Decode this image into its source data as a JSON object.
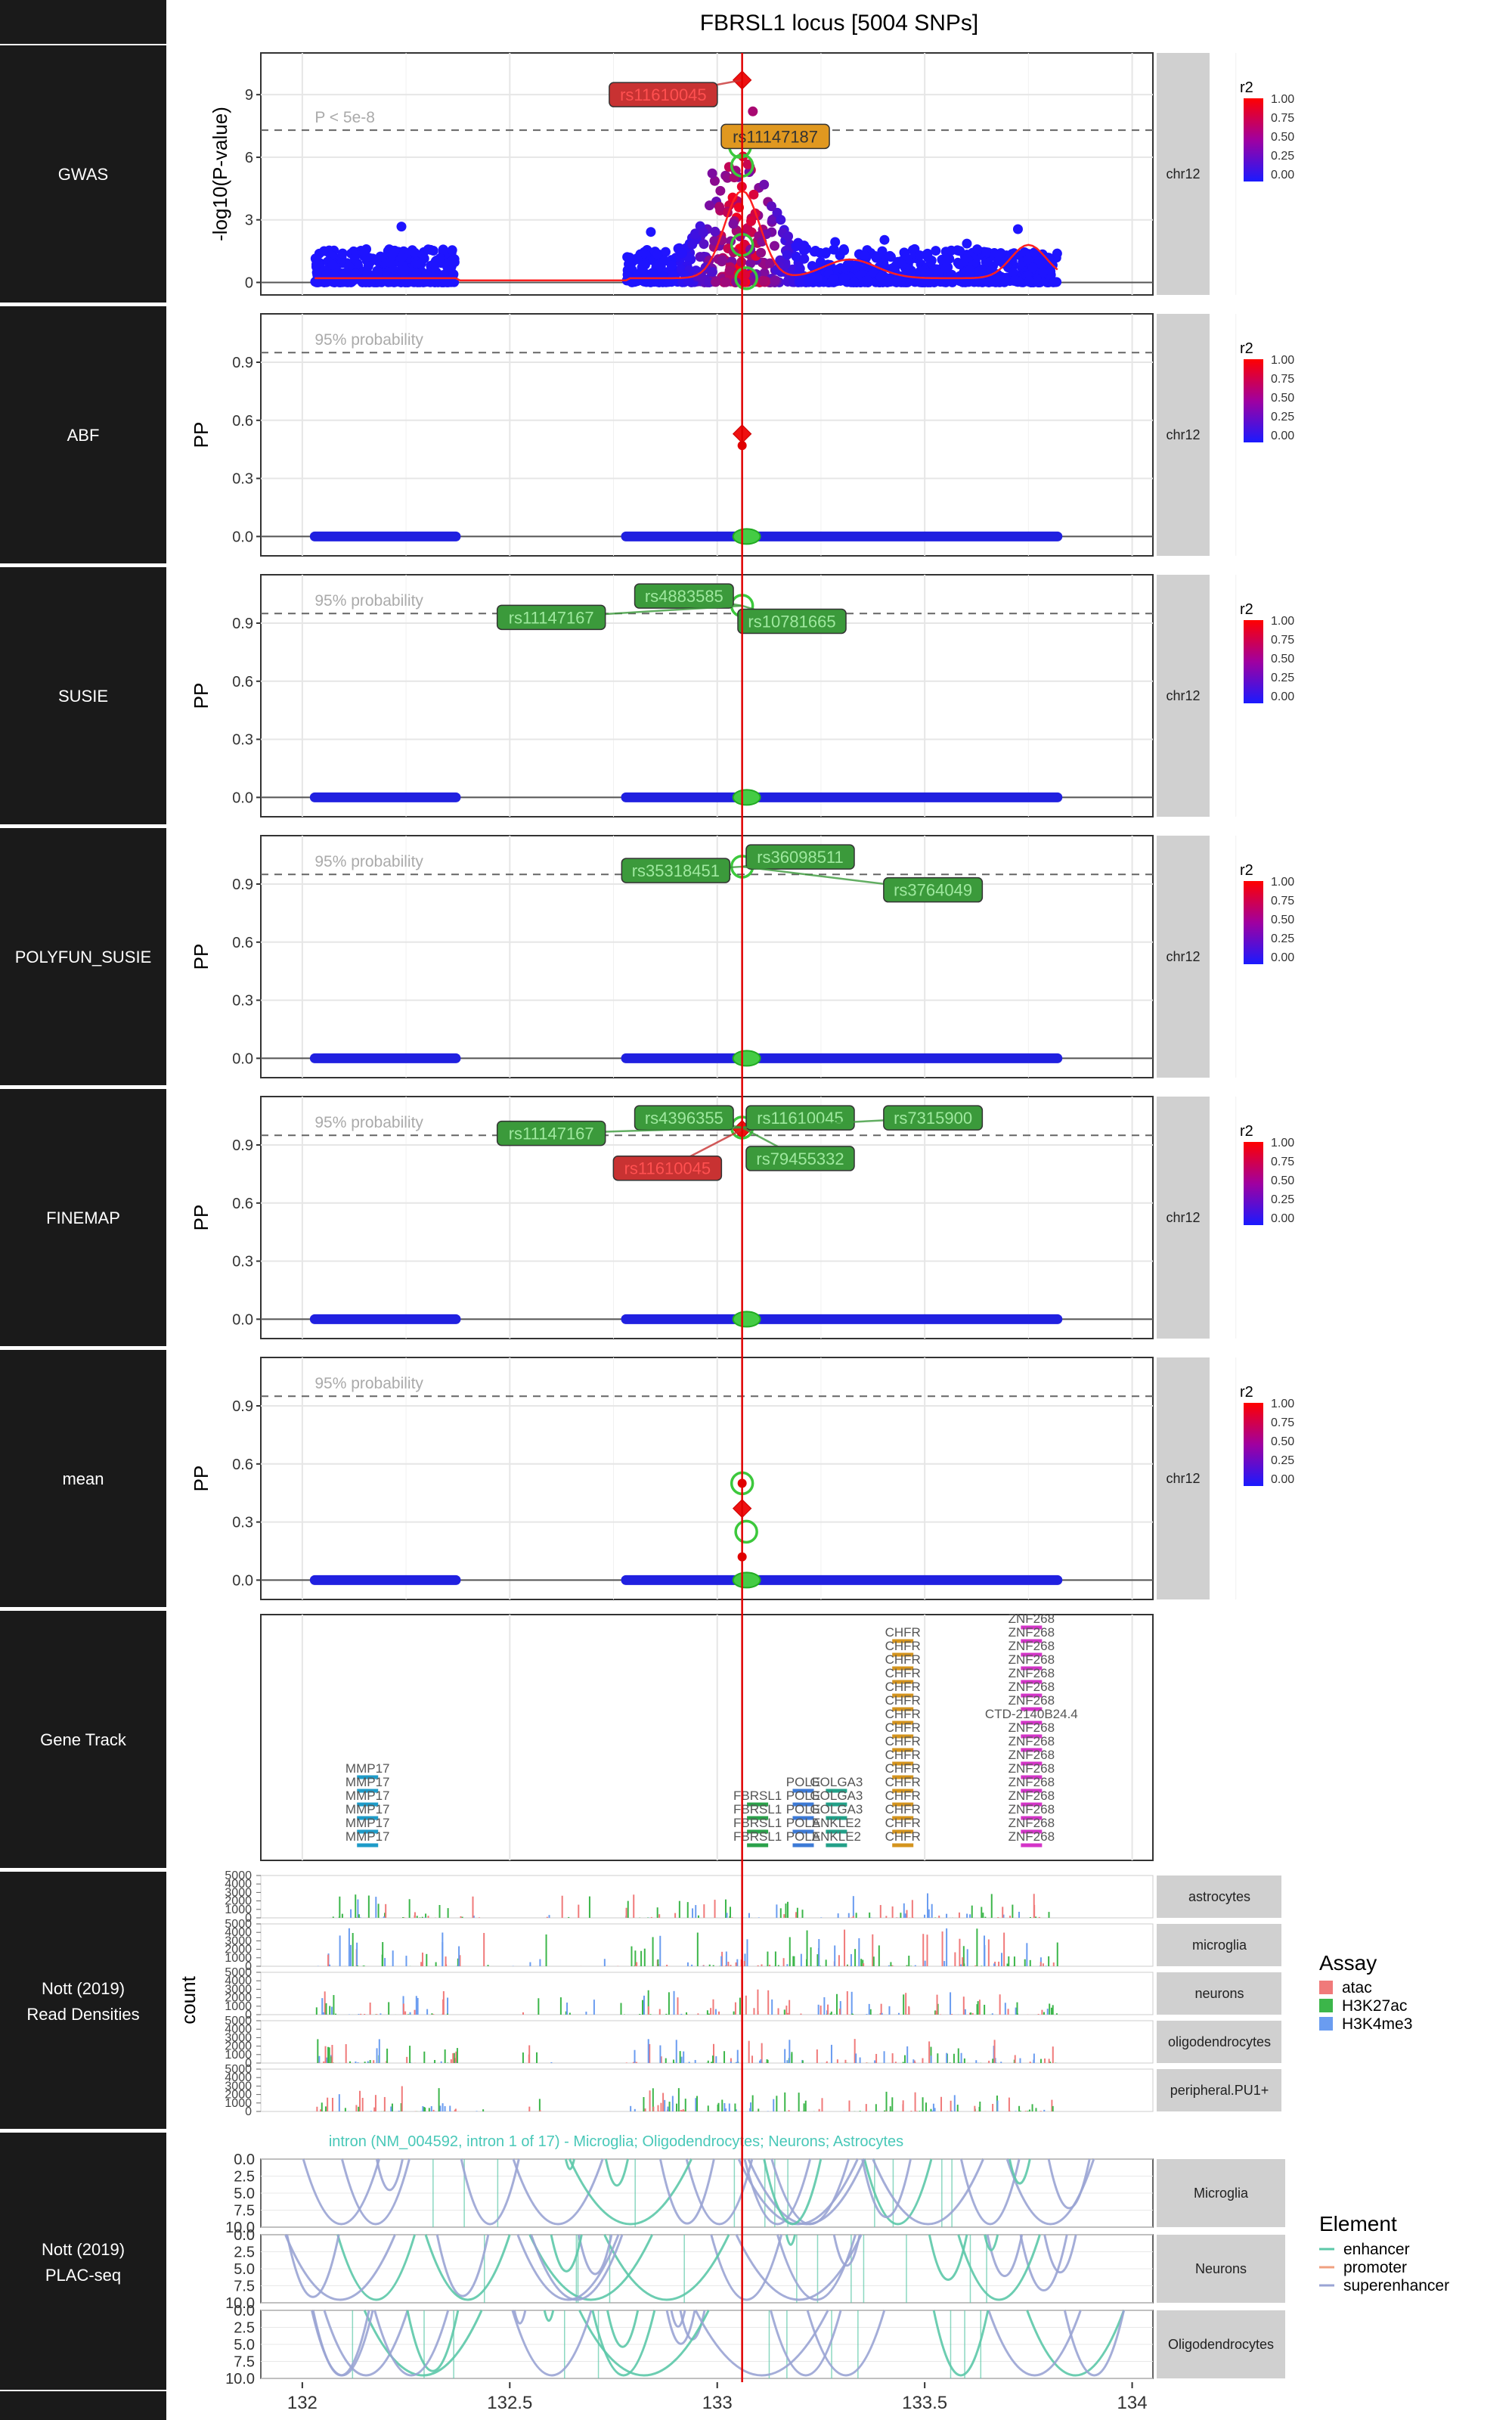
{
  "chart_data": {
    "type": "scatter",
    "title": "FBRSL1 locus [5004 SNPs]",
    "x_ticks": [
      "132",
      "132.5",
      "133",
      "133.5",
      "134"
    ],
    "xlim": [
      131.9,
      134.05
    ],
    "lead_x": 133.06,
    "colors": {
      "lead": "#e00000",
      "gwas_line": "#ff2020",
      "label_green": "#3b9a3b",
      "label_red": "#c83232",
      "label_orange": "#e09820",
      "strip": "#d0d0d0",
      "track_label_bg": "#1a1a1a"
    },
    "r2_legend": {
      "title": "r2",
      "ticks": [
        "1.00",
        "0.75",
        "0.50",
        "0.25",
        "0.00"
      ]
    },
    "chrom_label": "chr12",
    "panels": [
      {
        "name": "GWAS",
        "ylabel": "-log10(P-value)",
        "yticks": [
          "0",
          "3",
          "6",
          "9"
        ],
        "ylim": [
          -0.6,
          11.0
        ],
        "threshold": 7.3,
        "threshold_label": "P < 5e-8",
        "lead": 9.7,
        "labels": [
          {
            "text": "rs11610045",
            "x": 132.87,
            "y": 9.0,
            "color": "red"
          },
          {
            "text": "rs11147187",
            "x": 133.14,
            "y": 7.0,
            "color": "orange"
          }
        ],
        "circles": [
          {
            "x": 133.055,
            "y": 6.5
          },
          {
            "x": 133.06,
            "y": 5.6
          },
          {
            "x": 133.06,
            "y": 1.8
          },
          {
            "x": 133.07,
            "y": 0.2
          }
        ]
      },
      {
        "name": "ABF",
        "ylabel": "PP",
        "yticks": [
          "0.0",
          "0.3",
          "0.6",
          "0.9"
        ],
        "ylim": [
          -0.1,
          1.15
        ],
        "threshold": 0.95,
        "threshold_label": "95% probability",
        "lead": 0.53,
        "extra_points": [
          0.47
        ],
        "labels": [],
        "circles": []
      },
      {
        "name": "SUSIE",
        "ylabel": "PP",
        "yticks": [
          "0.0",
          "0.3",
          "0.6",
          "0.9"
        ],
        "ylim": [
          -0.1,
          1.15
        ],
        "threshold": 0.95,
        "threshold_label": "95% probability",
        "lead": null,
        "labels": [
          {
            "text": "rs4883585",
            "x": 132.92,
            "y": 1.04,
            "color": "green"
          },
          {
            "text": "rs11147167",
            "x": 132.6,
            "y": 0.93,
            "color": "green"
          },
          {
            "text": "rs10781665",
            "x": 133.18,
            "y": 0.91,
            "color": "green"
          }
        ],
        "circles": [
          {
            "x": 133.06,
            "y": 0.99
          }
        ]
      },
      {
        "name": "POLYFUN_SUSIE",
        "ylabel": "PP",
        "yticks": [
          "0.0",
          "0.3",
          "0.6",
          "0.9"
        ],
        "ylim": [
          -0.1,
          1.15
        ],
        "threshold": 0.95,
        "threshold_label": "95% probability",
        "lead": null,
        "labels": [
          {
            "text": "rs36098511",
            "x": 133.2,
            "y": 1.04,
            "color": "green"
          },
          {
            "text": "rs35318451",
            "x": 132.9,
            "y": 0.97,
            "color": "green"
          },
          {
            "text": "rs3764049",
            "x": 133.52,
            "y": 0.87,
            "color": "green"
          }
        ],
        "circles": [
          {
            "x": 133.06,
            "y": 0.99
          }
        ]
      },
      {
        "name": "FINEMAP",
        "ylabel": "PP",
        "yticks": [
          "0.0",
          "0.3",
          "0.6",
          "0.9"
        ],
        "ylim": [
          -0.1,
          1.15
        ],
        "threshold": 0.95,
        "threshold_label": "95% probability",
        "lead": 0.98,
        "labels": [
          {
            "text": "rs4396355",
            "x": 132.92,
            "y": 1.04,
            "color": "green"
          },
          {
            "text": "rs11610045",
            "x": 133.2,
            "y": 1.04,
            "color": "green"
          },
          {
            "text": "rs7315900",
            "x": 133.52,
            "y": 1.04,
            "color": "green"
          },
          {
            "text": "rs11147167",
            "x": 132.6,
            "y": 0.96,
            "color": "green"
          },
          {
            "text": "rs79455332",
            "x": 133.2,
            "y": 0.83,
            "color": "green"
          },
          {
            "text": "rs11610045",
            "x": 132.88,
            "y": 0.78,
            "color": "red"
          }
        ],
        "circles": [
          {
            "x": 133.06,
            "y": 0.99
          }
        ]
      },
      {
        "name": "mean",
        "ylabel": "PP",
        "yticks": [
          "0.0",
          "0.3",
          "0.6",
          "0.9"
        ],
        "ylim": [
          -0.1,
          1.15
        ],
        "threshold": 0.95,
        "threshold_label": "95% probability",
        "lead": 0.37,
        "extra_points": [
          0.12,
          0.5
        ],
        "labels": [],
        "circles": [
          {
            "x": 133.06,
            "y": 0.5
          },
          {
            "x": 133.07,
            "y": 0.25
          }
        ]
      }
    ],
    "genes": {
      "name": "Gene Track",
      "groups": [
        {
          "x": 132.15,
          "labels": [
            "MMP17",
            "MMP17",
            "MMP17",
            "MMP17",
            "MMP17",
            "MMP17"
          ],
          "color": "#1e9bc8"
        },
        {
          "x": 133.09,
          "labels": [
            "FBRSL1",
            "FBRSL1",
            "FBRSL1",
            "FBRSL1"
          ],
          "color": "#2aa14a"
        },
        {
          "x": 133.2,
          "labels": [
            "POLE",
            "POLE",
            "POLE",
            "POLE",
            "POLE"
          ],
          "color": "#3c7ad6"
        },
        {
          "x": 133.28,
          "labels": [
            "GOLGA3",
            "GOLGA3",
            "GOLGA3",
            "ANKLE2",
            "ANKLE2"
          ],
          "color": "#22a088"
        },
        {
          "x": 133.44,
          "labels": [
            "CHFR",
            "CHFR",
            "CHFR",
            "CHFR",
            "CHFR",
            "CHFR",
            "CHFR",
            "CHFR",
            "CHFR",
            "CHFR",
            "CHFR",
            "CHFR",
            "CHFR",
            "CHFR",
            "CHFR",
            "CHFR"
          ],
          "color": "#d4941e"
        },
        {
          "x": 133.75,
          "labels": [
            "ZNF268",
            "ZNF268",
            "ZNF268",
            "ZNF268",
            "ZNF268",
            "ZNF268",
            "ZNF268",
            "CTD-2140B24.4",
            "ZNF268",
            "ZNF268",
            "ZNF268",
            "ZNF268",
            "ZNF268",
            "ZNF268",
            "ZNF268",
            "ZNF268",
            "ZNF268"
          ],
          "color": "#d434c8"
        }
      ]
    },
    "read_densities": {
      "name": "Nott (2019) Read Densities",
      "ylabel": "count",
      "yticks": [
        "0",
        "1000",
        "2000",
        "3000",
        "4000",
        "5000"
      ],
      "cell_types": [
        "astrocytes",
        "microglia",
        "neurons",
        "oligodendrocytes",
        "peripheral.PU1+"
      ],
      "legend_title": "Assay",
      "assays": [
        {
          "name": "atac",
          "color": "#f07a7a"
        },
        {
          "name": "H3K27ac",
          "color": "#3cb64a"
        },
        {
          "name": "H3K4me3",
          "color": "#6a9cf0"
        }
      ]
    },
    "plac_seq": {
      "name": "Nott (2019) PLAC-seq",
      "annotation": "intron (NM_004592, intron 1 of 17) - Microglia; Oligodendrocytes; Neurons; Astrocytes",
      "yticks": [
        "0.0",
        "2.5",
        "5.0",
        "7.5",
        "10.0"
      ],
      "cell_types": [
        "Microglia",
        "Neurons",
        "Oligodendrocytes"
      ],
      "legend_title": "Element",
      "elements": [
        {
          "name": "enhancer",
          "color": "#5cc8a8"
        },
        {
          "name": "promoter",
          "color": "#f0a080"
        },
        {
          "name": "superenhancer",
          "color": "#9aa4d4"
        }
      ]
    }
  }
}
